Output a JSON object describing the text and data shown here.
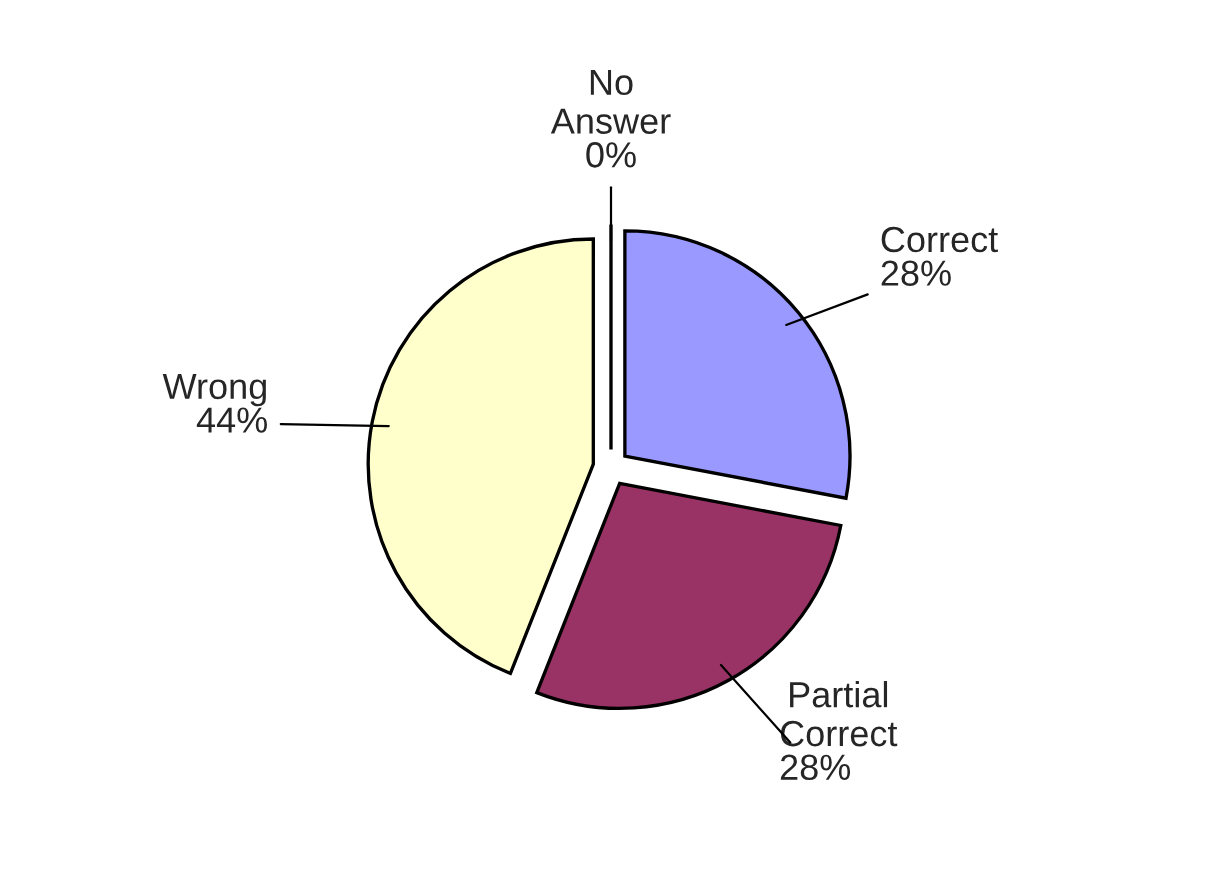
{
  "chart_data": {
    "type": "pie",
    "categories": [
      "Correct",
      "Partial Correct",
      "Wrong",
      "No Answer"
    ],
    "values": [
      28,
      28,
      44,
      0
    ],
    "value_labels": [
      "28%",
      "28%",
      "44%",
      "0%"
    ],
    "colors": [
      "#9999ff",
      "#993366",
      "#ffffcc",
      "#ccffff"
    ],
    "legend": false
  }
}
